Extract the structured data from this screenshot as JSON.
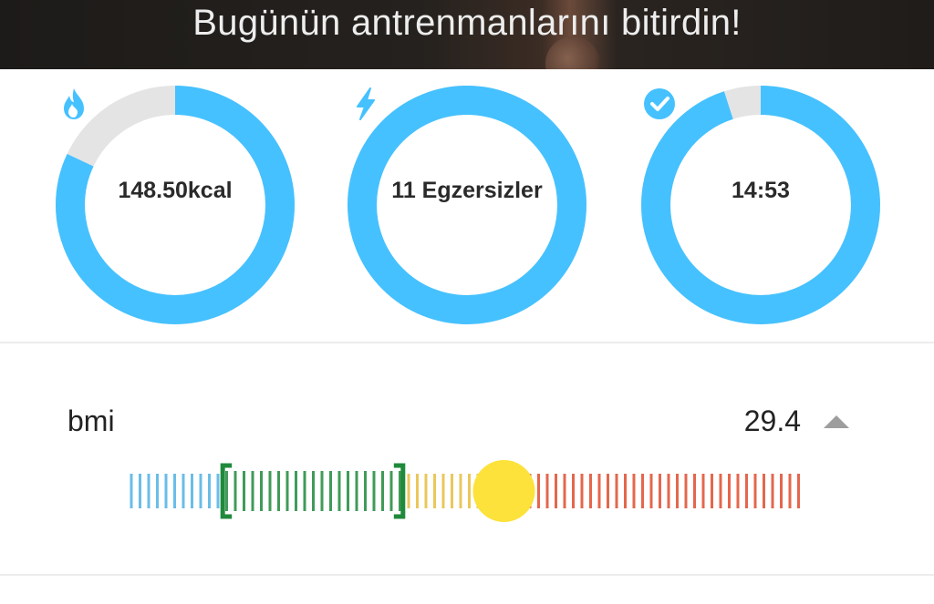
{
  "header": {
    "title": "Bugünün antrenmanlarını bitirdin!"
  },
  "stats": [
    {
      "value": "148.50kcal",
      "icon": "flame-icon",
      "progress": 0.82
    },
    {
      "value": "11 Egzersizler",
      "icon": "lightning-icon",
      "progress": 1.0
    },
    {
      "value": "14:53",
      "icon": "check-circle-icon",
      "progress": 0.95
    }
  ],
  "bmi": {
    "label": "bmi",
    "value": "29.4",
    "toggle_icon": "triangle-up-icon",
    "scale": {
      "min": 15,
      "max": 40,
      "healthy_range": [
        18.5,
        25
      ],
      "indicator_value": 29.4,
      "segments": [
        {
          "name": "underweight",
          "from": 15,
          "to": 18.5,
          "color": "#5ab6e6"
        },
        {
          "name": "healthy",
          "from": 18.5,
          "to": 25,
          "color": "#2e9b4a"
        },
        {
          "name": "overweight",
          "from": 25,
          "to": 28.5,
          "color": "#e8c14a"
        },
        {
          "name": "obese",
          "from": 28.5,
          "to": 40,
          "color": "#e2573a"
        }
      ]
    }
  },
  "colors": {
    "ring_accent": "#45c1ff",
    "ring_track": "#e4e4e4",
    "indicator": "#fce23a",
    "healthy_bracket": "#1f8a3b"
  }
}
